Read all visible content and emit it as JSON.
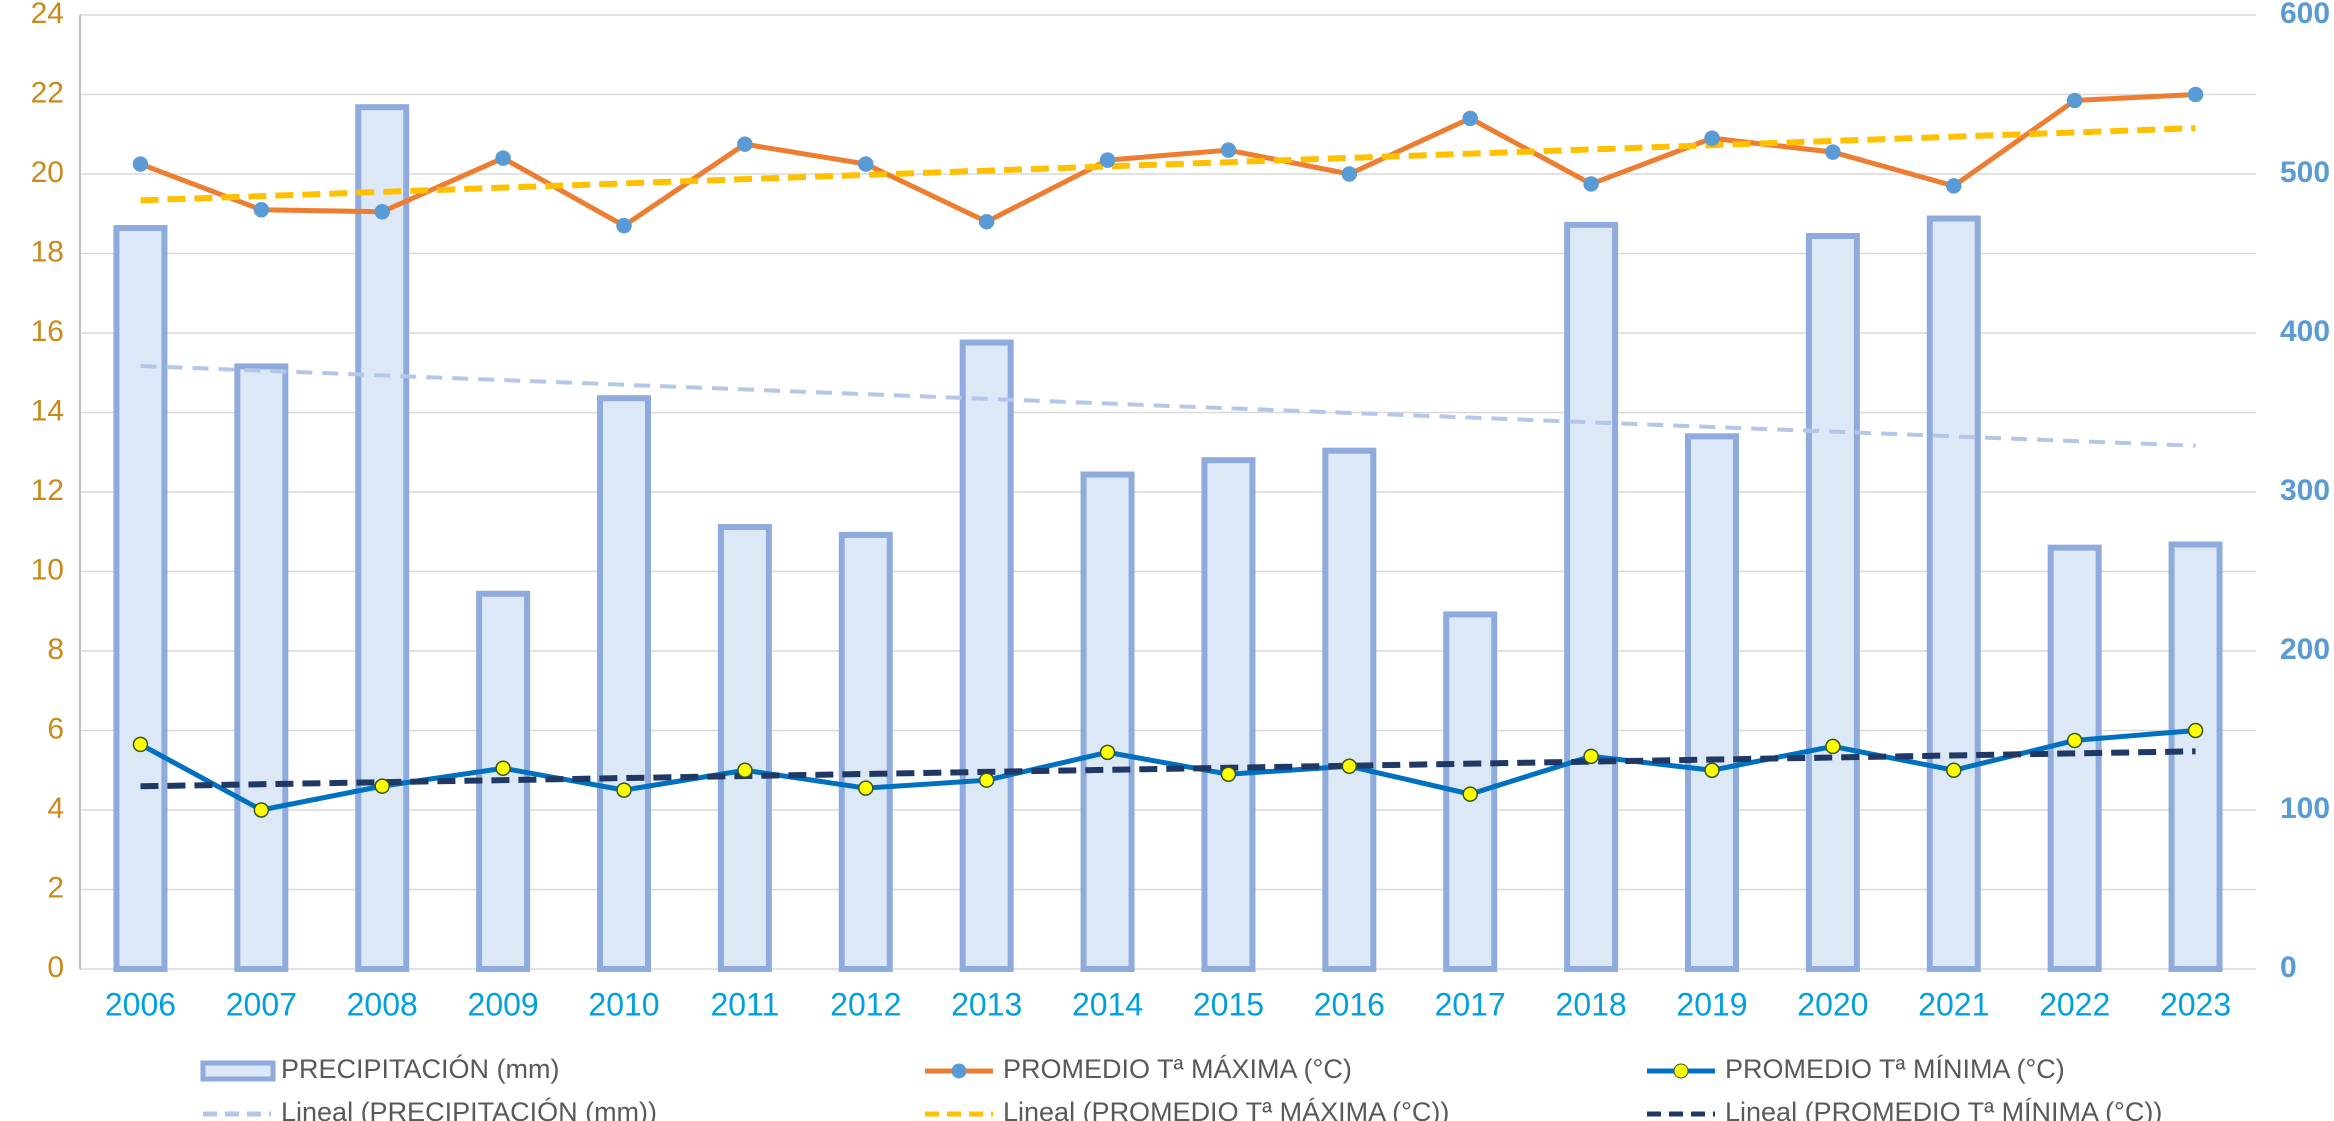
{
  "chart_data": {
    "type": "bar",
    "categories": [
      "2006",
      "2007",
      "2008",
      "2009",
      "2010",
      "2011",
      "2012",
      "2013",
      "2014",
      "2015",
      "2016",
      "2017",
      "2018",
      "2019",
      "2020",
      "2021",
      "2022",
      "2023"
    ],
    "series": [
      {
        "name": "PRECIPITACIÓN (mm)",
        "type": "bar",
        "axis": "y2",
        "color": "#8faadc",
        "fill": "#dde8f6",
        "values": [
          466,
          379,
          542,
          236,
          359,
          278,
          273,
          394,
          311,
          320,
          326,
          223,
          468,
          335,
          461,
          472,
          265,
          267
        ]
      },
      {
        "name": "PROMEDIO Tª MÁXIMA (°C)",
        "type": "line",
        "axis": "y",
        "color": "#ed7d31",
        "marker": "#5b9bd5",
        "values": [
          20.25,
          19.1,
          19.05,
          20.4,
          18.7,
          20.75,
          20.25,
          18.8,
          20.35,
          20.6,
          20.0,
          21.4,
          19.75,
          20.9,
          20.55,
          19.7,
          21.85,
          22.0
        ]
      },
      {
        "name": "PROMEDIO Tª MÍNIMA (°C)",
        "type": "line",
        "axis": "y",
        "color": "#0070c0",
        "marker": "#ffff00",
        "values": [
          5.65,
          4.0,
          4.6,
          5.05,
          4.5,
          5.0,
          4.55,
          4.75,
          5.45,
          4.9,
          5.1,
          4.4,
          5.35,
          5.0,
          5.6,
          5.0,
          5.75,
          6.0
        ]
      }
    ],
    "trendlines": [
      {
        "name": "Lineal (PRECIPITACIÓN (mm))",
        "color": "#b4c7e7"
      },
      {
        "name": "Lineal (PROMEDIO Tª MÁXIMA (°C))",
        "color": "#ffc000"
      },
      {
        "name": "Lineal (PROMEDIO Tª MÍNIMA (°C))",
        "color": "#1f3864"
      }
    ],
    "ylim": [
      0,
      24
    ],
    "yticks": [
      0,
      2,
      4,
      6,
      8,
      10,
      12,
      14,
      16,
      18,
      20,
      22,
      24
    ],
    "y2lim": [
      0,
      600
    ],
    "y2ticks": [
      0,
      100,
      200,
      300,
      400,
      500,
      600
    ],
    "grid": true
  }
}
